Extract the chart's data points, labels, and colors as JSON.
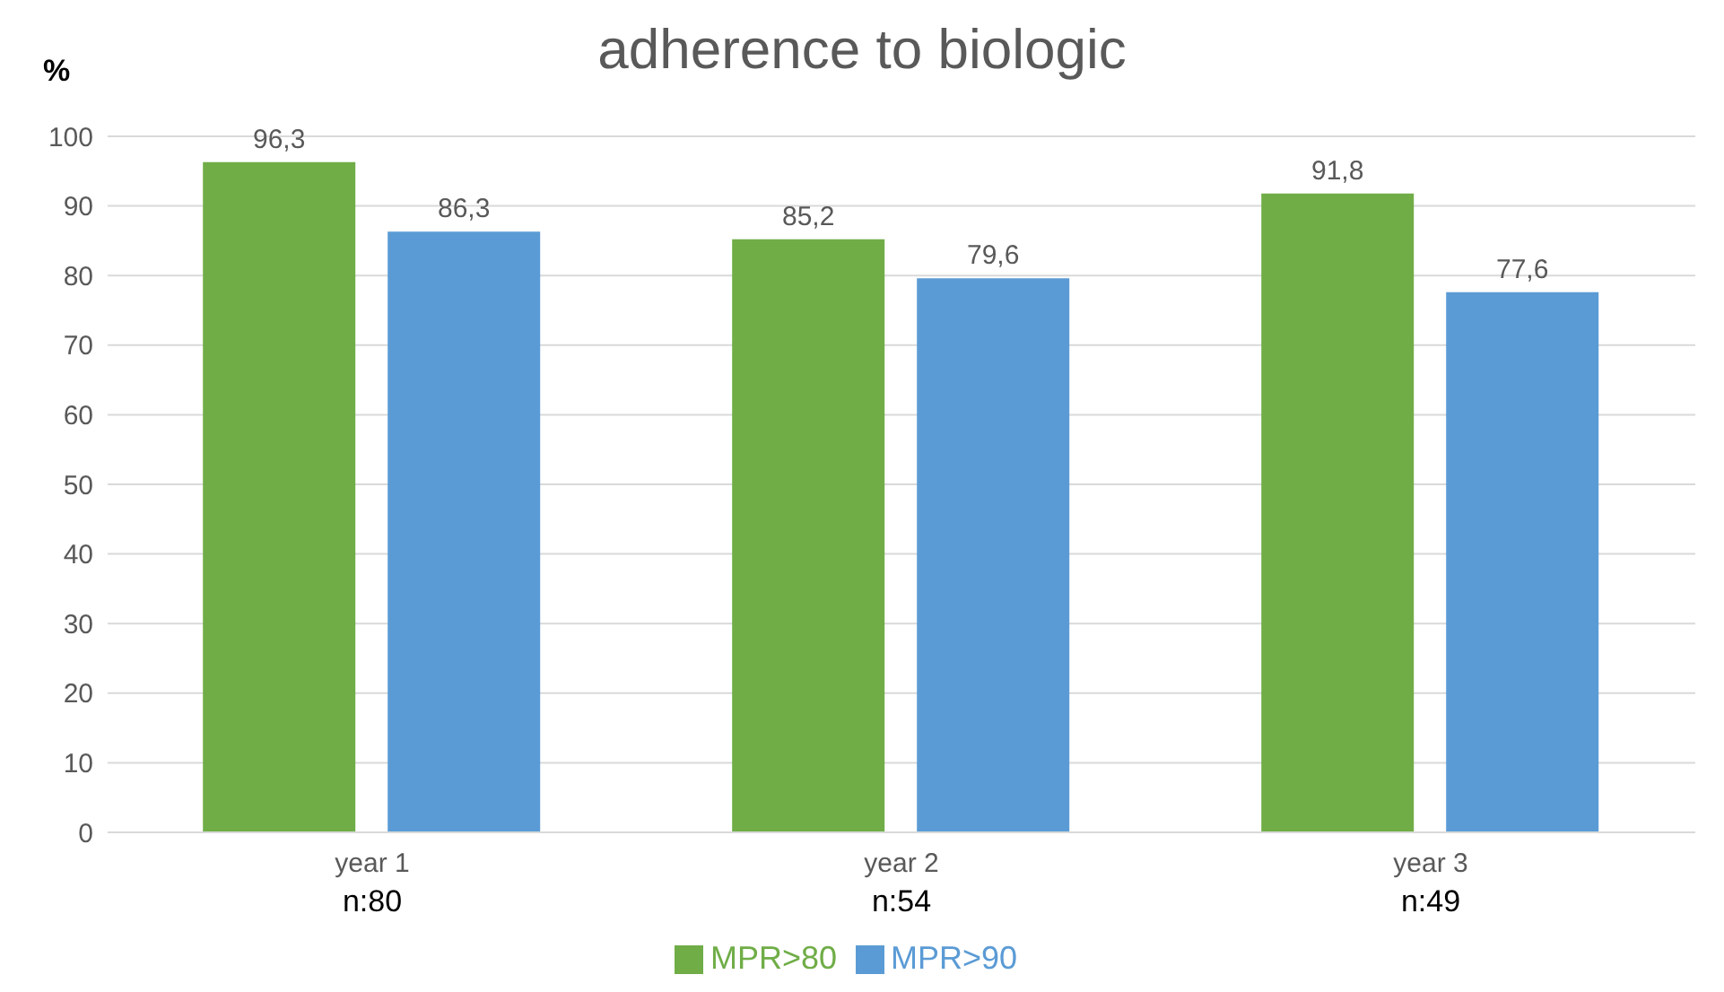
{
  "chart_data": {
    "type": "bar",
    "title": "adherence to biologic",
    "ylabel": "%",
    "categories": [
      "year 1\nn:80",
      "year 2\nn:54",
      "year 3\nn:49"
    ],
    "series": [
      {
        "name": "MPR>80",
        "color": "#70ad47",
        "values": [
          96.3,
          85.2,
          91.8
        ],
        "value_labels": [
          "96,3",
          "85,2",
          "91,8"
        ]
      },
      {
        "name": "MPR>90",
        "color": "#5b9bd5",
        "values": [
          86.3,
          79.6,
          77.6
        ],
        "value_labels": [
          "86,3",
          "79,6",
          "77,6"
        ]
      }
    ],
    "ylim": [
      0,
      100
    ],
    "yticks": [
      0,
      10,
      20,
      30,
      40,
      50,
      60,
      70,
      80,
      90,
      100
    ],
    "grid": "y",
    "legend": "bottom"
  }
}
